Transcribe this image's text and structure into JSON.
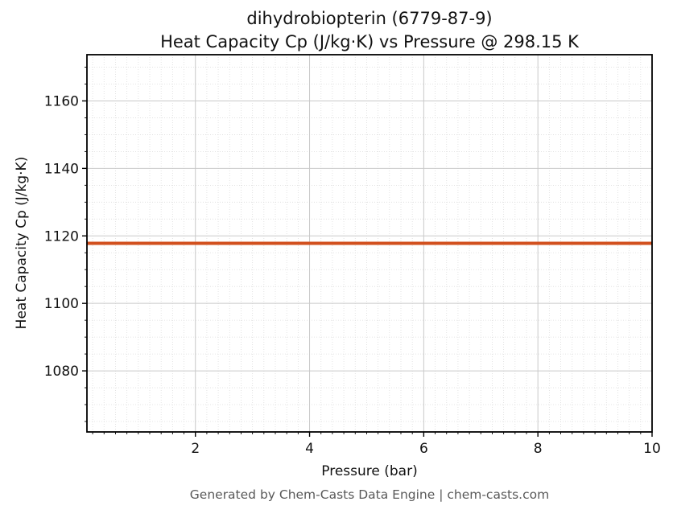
{
  "chart_data": {
    "type": "line",
    "title": "dihydrobiopterin (6779-87-9)",
    "subtitle": "Heat Capacity Cp (J/kg·K) vs Pressure @ 298.15 K",
    "xlabel": "Pressure (bar)",
    "ylabel": "Heat Capacity Cp (J/kg·K)",
    "footer": "Generated by Chem-Casts Data Engine | chem-casts.com",
    "xlim": [
      0.1,
      10
    ],
    "ylim": [
      1061.9,
      1173.7
    ],
    "xticks": [
      2,
      4,
      6,
      8,
      10
    ],
    "yticks": [
      1080,
      1100,
      1120,
      1140,
      1160
    ],
    "minor_x_step": 0.2,
    "minor_y_step": 5,
    "grid": {
      "major": true,
      "minor": true
    },
    "legend": "none",
    "series": [
      {
        "name": "Heat Capacity Cp",
        "x": [
          0.1,
          10
        ],
        "y": [
          1117.8,
          1117.8
        ],
        "color": "#d2501e",
        "line_width": 4
      }
    ]
  },
  "colors": {
    "background": "#ffffff",
    "line": "#d2501e",
    "major_grid": "#c9c9c9",
    "minor_grid": "#dcdcdc",
    "axis": "#000000",
    "tick_text": "#111111",
    "footer_text": "#595959"
  }
}
